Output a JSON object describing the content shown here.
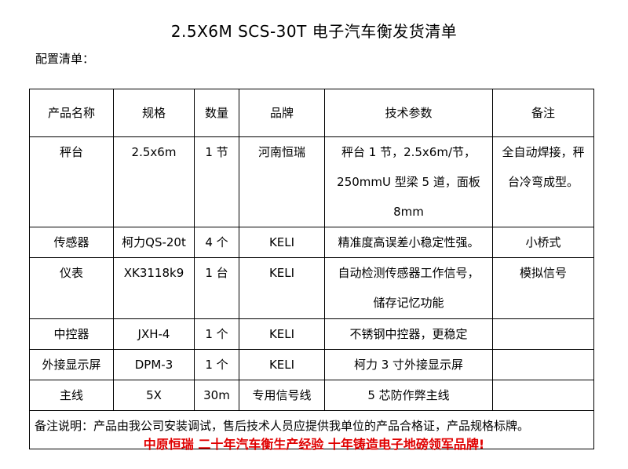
{
  "title": "2.5X6M SCS-30T 电子汽车衡发货清单",
  "subtitle": "配置清单：",
  "table": {
    "headers": [
      "产品名称",
      "规格",
      "数量",
      "品牌",
      "技术参数",
      "备注"
    ],
    "rows": [
      [
        "秤台",
        "2.5x6m",
        "1 节",
        "河南恒瑞",
        "秤台 1 节，2.5x6m/节，",
        "全自动焊接，秤"
      ],
      [
        "",
        "",
        "",
        "",
        "250mmU 型梁 5 道，面板 8mm",
        "台冷弯成型。"
      ],
      [
        "传感器",
        "柯力QS-20t",
        "4 个",
        "KELI",
        "精准度高误差小稳定性强。",
        "小桥式"
      ],
      [
        "仪表",
        "XK3118k9",
        "1 台",
        "KELI",
        "自动检测传感器工作信号，",
        "模拟信号"
      ],
      [
        "",
        "",
        "",
        "",
        "储存记忆功能",
        ""
      ],
      [
        "中控器",
        "JXH-4",
        "1 个",
        "KELI",
        "不锈钢中控器，更稳定",
        ""
      ],
      [
        "外接显示屏",
        "DPM-3",
        "1 个",
        "KELI",
        "柯力 3 寸外接显示屏",
        ""
      ],
      [
        "主线",
        "5X",
        "30m",
        "专用信号线",
        "5 芯防作弊主线",
        ""
      ]
    ],
    "note": "备注说明：产品由我公司安装调试，售后技术人员应提供我单位的产品合格证，产品规格标牌。"
  },
  "footer": "中原恒瑞 二十年汽车衡生产经验 十年铸造电子地磅领军品牌!",
  "colors": {
    "footer": "#e00000"
  }
}
